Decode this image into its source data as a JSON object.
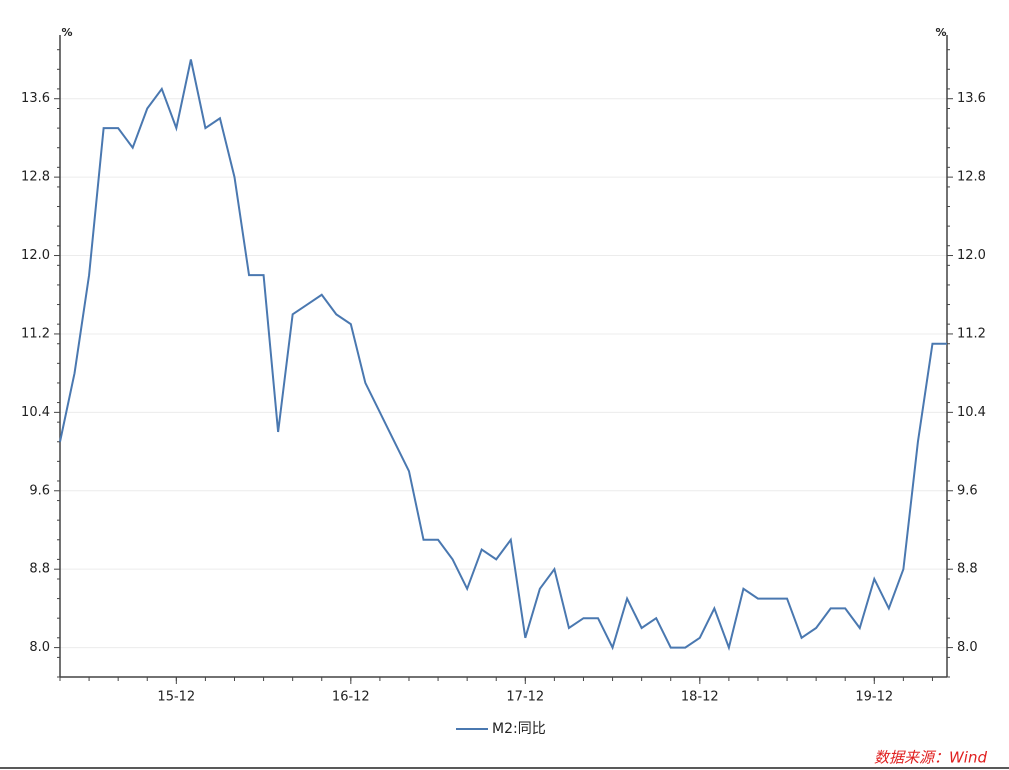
{
  "chart_data": {
    "type": "line",
    "y_unit": "%",
    "y2_unit": "%",
    "categories": [
      null,
      null,
      null,
      null,
      null,
      null,
      null,
      null,
      "15-12",
      null,
      null,
      null,
      null,
      null,
      null,
      null,
      null,
      null,
      null,
      null,
      "16-12",
      null,
      null,
      null,
      null,
      null,
      null,
      null,
      null,
      null,
      null,
      null,
      "17-12",
      null,
      null,
      null,
      null,
      null,
      null,
      null,
      null,
      null,
      null,
      null,
      "18-12",
      null,
      null,
      null,
      null,
      null,
      null,
      null,
      null,
      null,
      null,
      null,
      "19-12",
      null,
      null,
      null,
      null,
      null
    ],
    "series": [
      {
        "name": "M2:同比",
        "color": "#4a78b0",
        "values": [
          10.1,
          10.8,
          11.8,
          13.3,
          13.3,
          13.1,
          13.5,
          13.7,
          13.3,
          14.0,
          13.3,
          13.4,
          12.8,
          11.8,
          11.8,
          10.2,
          11.4,
          11.5,
          11.6,
          11.4,
          11.3,
          10.7,
          10.4,
          10.1,
          9.8,
          9.1,
          9.1,
          8.9,
          8.6,
          9.0,
          8.9,
          9.1,
          8.1,
          8.6,
          8.8,
          8.2,
          8.3,
          8.3,
          8.0,
          8.5,
          8.2,
          8.3,
          8.0,
          8.0,
          8.1,
          8.4,
          8.0,
          8.6,
          8.5,
          8.5,
          8.5,
          8.1,
          8.2,
          8.4,
          8.4,
          8.2,
          8.7,
          8.4,
          8.8,
          10.1,
          11.1,
          11.1
        ]
      }
    ],
    "ylim": [
      7.7,
      14.25
    ],
    "yticks": [
      {
        "value": 8,
        "label": "8.0"
      },
      8.8,
      9.6,
      10.4,
      11.2,
      {
        "value": 12,
        "label": "12.0"
      },
      12.8,
      13.6
    ],
    "y2lim": [
      7.7,
      14.25
    ],
    "y2ticks": [
      {
        "value": 8,
        "label": "8.0"
      },
      8.8,
      9.6,
      10.4,
      11.2,
      {
        "value": 12,
        "label": "12.0"
      },
      12.8,
      13.6
    ],
    "grid": true,
    "legend": "bottom",
    "source": "数据来源：Wind"
  }
}
